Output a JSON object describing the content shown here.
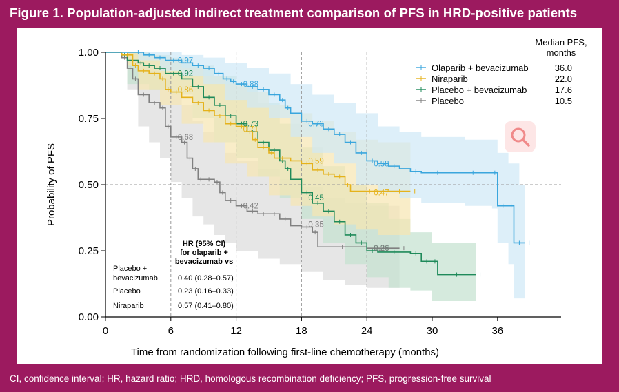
{
  "figure": {
    "title": "Figure 1. Population-adjusted indirect treatment comparison of PFS in HRD-positive patients",
    "footnote": "CI, confidence interval; HR, hazard ratio; HRD, homologous recombination deficiency; PFS, progression-free survival",
    "colors": {
      "background": "#9c1a5f",
      "panel": "#ffffff"
    }
  },
  "search_icon": {
    "icon": "search-icon",
    "color": "#f08080"
  },
  "chart_data": {
    "type": "line",
    "subtype": "kaplan-meier",
    "title": "Figure 1. Population-adjusted indirect treatment comparison of PFS in HRD-positive patients",
    "xlabel": "Time from randomization following first-line chemotherapy (months)",
    "ylabel": "Probability of PFS",
    "xlim": [
      0,
      41
    ],
    "ylim": [
      0,
      1
    ],
    "xticks": [
      0,
      6,
      12,
      18,
      24,
      30,
      36
    ],
    "yticks": [
      0,
      0.25,
      0.5,
      0.75,
      1
    ],
    "yticklabels": [
      "0.00",
      "0.25",
      "0.50",
      "0.75",
      "1.00"
    ],
    "reference_lines": {
      "vertical": [
        6,
        12,
        18,
        24
      ],
      "horizontal": [
        0.5
      ]
    },
    "legend": {
      "position": "top-right",
      "header": [
        "Median PFS,",
        "months"
      ]
    },
    "series": [
      {
        "name": "Olaparib + bevacizumab",
        "median_pfs": "36.0",
        "color": "#3aa6dd",
        "ci_color": "#cfe8f7",
        "annotations": [
          {
            "x": 6,
            "y": 0.97,
            "label": "0.97"
          },
          {
            "x": 12,
            "y": 0.88,
            "label": "0.88"
          },
          {
            "x": 18,
            "y": 0.73,
            "label": "0.73"
          },
          {
            "x": 24,
            "y": 0.58,
            "label": "0.58"
          }
        ],
        "points": [
          [
            0,
            1
          ],
          [
            2.5,
            1
          ],
          [
            3.5,
            0.99
          ],
          [
            4.5,
            0.98
          ],
          [
            5.5,
            0.97
          ],
          [
            7,
            0.96
          ],
          [
            8,
            0.95
          ],
          [
            9,
            0.94
          ],
          [
            10,
            0.92
          ],
          [
            10.8,
            0.9
          ],
          [
            11.5,
            0.89
          ],
          [
            12,
            0.88
          ],
          [
            13,
            0.87
          ],
          [
            14,
            0.86
          ],
          [
            15,
            0.84
          ],
          [
            16,
            0.82
          ],
          [
            16.5,
            0.79
          ],
          [
            17,
            0.77
          ],
          [
            18,
            0.74
          ],
          [
            19,
            0.73
          ],
          [
            20,
            0.71
          ],
          [
            21,
            0.69
          ],
          [
            22,
            0.66
          ],
          [
            23,
            0.62
          ],
          [
            24,
            0.59
          ],
          [
            25,
            0.58
          ],
          [
            26,
            0.57
          ],
          [
            27,
            0.56
          ],
          [
            28,
            0.55
          ],
          [
            29,
            0.545
          ],
          [
            32,
            0.545
          ],
          [
            35.5,
            0.545
          ],
          [
            36,
            0.42
          ],
          [
            37,
            0.42
          ],
          [
            37.5,
            0.28
          ],
          [
            38.5,
            0.28
          ]
        ],
        "ci_upper": [
          [
            0,
            1
          ],
          [
            3,
            1
          ],
          [
            5,
            1
          ],
          [
            7,
            0.99
          ],
          [
            9,
            0.98
          ],
          [
            11,
            0.96
          ],
          [
            13,
            0.94
          ],
          [
            15,
            0.92
          ],
          [
            17,
            0.88
          ],
          [
            19,
            0.84
          ],
          [
            21,
            0.81
          ],
          [
            23,
            0.77
          ],
          [
            25,
            0.72
          ],
          [
            27,
            0.7
          ],
          [
            29,
            0.68
          ],
          [
            33,
            0.67
          ],
          [
            35.5,
            0.67
          ],
          [
            36,
            0.62
          ],
          [
            37,
            0.58
          ],
          [
            38,
            0.5
          ],
          [
            38.5,
            0.5
          ]
        ],
        "ci_lower": [
          [
            0,
            1
          ],
          [
            3,
            0.97
          ],
          [
            5,
            0.93
          ],
          [
            7,
            0.91
          ],
          [
            9,
            0.88
          ],
          [
            11,
            0.82
          ],
          [
            13,
            0.79
          ],
          [
            15,
            0.75
          ],
          [
            17,
            0.68
          ],
          [
            19,
            0.62
          ],
          [
            21,
            0.58
          ],
          [
            23,
            0.5
          ],
          [
            25,
            0.47
          ],
          [
            27,
            0.45
          ],
          [
            29,
            0.43
          ],
          [
            33,
            0.42
          ],
          [
            35.5,
            0.41
          ],
          [
            36,
            0.28
          ],
          [
            37,
            0.2
          ],
          [
            37.5,
            0.07
          ],
          [
            38.5,
            0.07
          ]
        ]
      },
      {
        "name": "Niraparib",
        "median_pfs": "22.0",
        "color": "#e5b21b",
        "ci_color": "#f7e6b0",
        "annotations": [
          {
            "x": 6,
            "y": 0.86,
            "label": "0.86"
          },
          {
            "x": 12,
            "y": 0.71,
            "label": "0.71"
          },
          {
            "x": 18,
            "y": 0.59,
            "label": "0.59"
          },
          {
            "x": 24,
            "y": 0.47,
            "label": "0.47"
          }
        ],
        "points": [
          [
            0,
            1
          ],
          [
            1.5,
            0.99
          ],
          [
            2.5,
            0.95
          ],
          [
            3,
            0.93
          ],
          [
            4,
            0.92
          ],
          [
            5,
            0.9
          ],
          [
            5.5,
            0.86
          ],
          [
            6,
            0.85
          ],
          [
            7,
            0.83
          ],
          [
            8,
            0.81
          ],
          [
            9,
            0.78
          ],
          [
            10,
            0.76
          ],
          [
            11,
            0.73
          ],
          [
            12,
            0.72
          ],
          [
            13,
            0.7
          ],
          [
            13.5,
            0.67
          ],
          [
            14,
            0.64
          ],
          [
            15,
            0.62
          ],
          [
            15.5,
            0.6
          ],
          [
            17,
            0.59
          ],
          [
            18,
            0.58
          ],
          [
            19,
            0.555
          ],
          [
            20,
            0.54
          ],
          [
            21,
            0.53
          ],
          [
            22,
            0.5
          ],
          [
            22.5,
            0.475
          ],
          [
            26,
            0.475
          ],
          [
            28,
            0.475
          ]
        ],
        "ci_upper": [
          [
            0,
            1
          ],
          [
            2,
            1
          ],
          [
            3,
            0.99
          ],
          [
            5,
            0.97
          ],
          [
            7,
            0.94
          ],
          [
            9,
            0.91
          ],
          [
            11,
            0.88
          ],
          [
            13,
            0.85
          ],
          [
            15,
            0.8
          ],
          [
            17,
            0.77
          ],
          [
            19,
            0.74
          ],
          [
            21,
            0.7
          ],
          [
            23,
            0.67
          ],
          [
            25,
            0.66
          ],
          [
            28,
            0.66
          ]
        ],
        "ci_lower": [
          [
            0,
            1
          ],
          [
            2,
            0.95
          ],
          [
            3,
            0.86
          ],
          [
            5,
            0.8
          ],
          [
            7,
            0.73
          ],
          [
            9,
            0.66
          ],
          [
            11,
            0.58
          ],
          [
            13,
            0.53
          ],
          [
            15,
            0.46
          ],
          [
            17,
            0.42
          ],
          [
            19,
            0.38
          ],
          [
            21,
            0.35
          ],
          [
            23,
            0.33
          ],
          [
            25,
            0.31
          ],
          [
            28,
            0.31
          ]
        ]
      },
      {
        "name": "Placebo + bevacizumab",
        "median_pfs": "17.6",
        "color": "#1f8a5a",
        "ci_color": "#c3e1cf",
        "annotations": [
          {
            "x": 6,
            "y": 0.92,
            "label": "0.92"
          },
          {
            "x": 12,
            "y": 0.73,
            "label": "0.73"
          },
          {
            "x": 18,
            "y": 0.45,
            "label": "0.45"
          },
          {
            "x": 24,
            "y": 0.26,
            "label": "0.26"
          }
        ],
        "points": [
          [
            0,
            1
          ],
          [
            1.5,
            0.99
          ],
          [
            2,
            0.97
          ],
          [
            3,
            0.96
          ],
          [
            3.5,
            0.95
          ],
          [
            4.5,
            0.94
          ],
          [
            5.5,
            0.92
          ],
          [
            7,
            0.9
          ],
          [
            8,
            0.87
          ],
          [
            9,
            0.83
          ],
          [
            10,
            0.8
          ],
          [
            11,
            0.76
          ],
          [
            12,
            0.73
          ],
          [
            13,
            0.7
          ],
          [
            14,
            0.66
          ],
          [
            15,
            0.63
          ],
          [
            16,
            0.59
          ],
          [
            16.5,
            0.56
          ],
          [
            17,
            0.52
          ],
          [
            18,
            0.47
          ],
          [
            19,
            0.43
          ],
          [
            20,
            0.4
          ],
          [
            21,
            0.36
          ],
          [
            22,
            0.31
          ],
          [
            23,
            0.28
          ],
          [
            24,
            0.25
          ],
          [
            25,
            0.245
          ],
          [
            28,
            0.24
          ],
          [
            29,
            0.21
          ],
          [
            30,
            0.21
          ],
          [
            30.5,
            0.16
          ],
          [
            34,
            0.16
          ]
        ],
        "ci_upper": [
          [
            0,
            1
          ],
          [
            2,
            1
          ],
          [
            4,
            0.99
          ],
          [
            6,
            0.98
          ],
          [
            8,
            0.95
          ],
          [
            10,
            0.91
          ],
          [
            12,
            0.87
          ],
          [
            14,
            0.81
          ],
          [
            16,
            0.73
          ],
          [
            18,
            0.64
          ],
          [
            20,
            0.57
          ],
          [
            22,
            0.5
          ],
          [
            24,
            0.43
          ],
          [
            26,
            0.37
          ],
          [
            28,
            0.32
          ],
          [
            30,
            0.28
          ],
          [
            34,
            0.28
          ]
        ],
        "ci_lower": [
          [
            0,
            1
          ],
          [
            2,
            0.88
          ],
          [
            4,
            0.86
          ],
          [
            6,
            0.84
          ],
          [
            8,
            0.75
          ],
          [
            10,
            0.66
          ],
          [
            12,
            0.6
          ],
          [
            14,
            0.53
          ],
          [
            16,
            0.45
          ],
          [
            18,
            0.37
          ],
          [
            20,
            0.28
          ],
          [
            22,
            0.2
          ],
          [
            24,
            0.15
          ],
          [
            26,
            0.11
          ],
          [
            28,
            0.1
          ],
          [
            30,
            0.06
          ],
          [
            34,
            0.06
          ]
        ]
      },
      {
        "name": "Placebo",
        "median_pfs": "10.5",
        "color": "#808080",
        "ci_color": "#dcdcdc",
        "annotations": [
          {
            "x": 6,
            "y": 0.68,
            "label": "0.68"
          },
          {
            "x": 12,
            "y": 0.42,
            "label": "0.42"
          },
          {
            "x": 18,
            "y": 0.35,
            "label": "0.35"
          },
          {
            "x": 24,
            "y": 0.26,
            "label": "0.26"
          }
        ],
        "points": [
          [
            0,
            1
          ],
          [
            1.5,
            0.98
          ],
          [
            2,
            0.94
          ],
          [
            2.5,
            0.9
          ],
          [
            3,
            0.84
          ],
          [
            4,
            0.81
          ],
          [
            5,
            0.79
          ],
          [
            5.5,
            0.72
          ],
          [
            6,
            0.68
          ],
          [
            7,
            0.66
          ],
          [
            7.5,
            0.6
          ],
          [
            8,
            0.56
          ],
          [
            8.5,
            0.52
          ],
          [
            9,
            0.52
          ],
          [
            10,
            0.51
          ],
          [
            10.5,
            0.47
          ],
          [
            11,
            0.44
          ],
          [
            12,
            0.42
          ],
          [
            13,
            0.4
          ],
          [
            14,
            0.39
          ],
          [
            15,
            0.39
          ],
          [
            16,
            0.37
          ],
          [
            17,
            0.345
          ],
          [
            18,
            0.34
          ],
          [
            19,
            0.32
          ],
          [
            19.5,
            0.265
          ],
          [
            24,
            0.26
          ],
          [
            27,
            0.26
          ]
        ],
        "ci_upper": [
          [
            0,
            1
          ],
          [
            2,
            1
          ],
          [
            3,
            0.95
          ],
          [
            4,
            0.93
          ],
          [
            5,
            0.9
          ],
          [
            6,
            0.84
          ],
          [
            7,
            0.8
          ],
          [
            8,
            0.74
          ],
          [
            9,
            0.7
          ],
          [
            10,
            0.66
          ],
          [
            11,
            0.62
          ],
          [
            12,
            0.59
          ],
          [
            14,
            0.56
          ],
          [
            16,
            0.52
          ],
          [
            18,
            0.49
          ],
          [
            20,
            0.45
          ],
          [
            22,
            0.43
          ],
          [
            24,
            0.42
          ],
          [
            27,
            0.42
          ]
        ],
        "ci_lower": [
          [
            0,
            1
          ],
          [
            2,
            0.86
          ],
          [
            3,
            0.72
          ],
          [
            4,
            0.66
          ],
          [
            5,
            0.6
          ],
          [
            6,
            0.51
          ],
          [
            7,
            0.45
          ],
          [
            8,
            0.38
          ],
          [
            9,
            0.35
          ],
          [
            10,
            0.31
          ],
          [
            11,
            0.28
          ],
          [
            12,
            0.25
          ],
          [
            14,
            0.22
          ],
          [
            16,
            0.2
          ],
          [
            18,
            0.17
          ],
          [
            20,
            0.14
          ],
          [
            22,
            0.12
          ],
          [
            24,
            0.11
          ],
          [
            27,
            0.11
          ]
        ]
      }
    ],
    "hr_table": {
      "header": [
        "HR (95% CI)",
        "for olaparib +",
        "bevacizumab vs"
      ],
      "rows": [
        {
          "label_lines": [
            "Placebo +",
            "bevacizumab"
          ],
          "value": "0.40 (0.28–0.57)"
        },
        {
          "label_lines": [
            "Placebo"
          ],
          "value": "0.23 (0.16–0.33)"
        },
        {
          "label_lines": [
            "Niraparib"
          ],
          "value": "0.57 (0.41–0.80)"
        }
      ]
    }
  }
}
